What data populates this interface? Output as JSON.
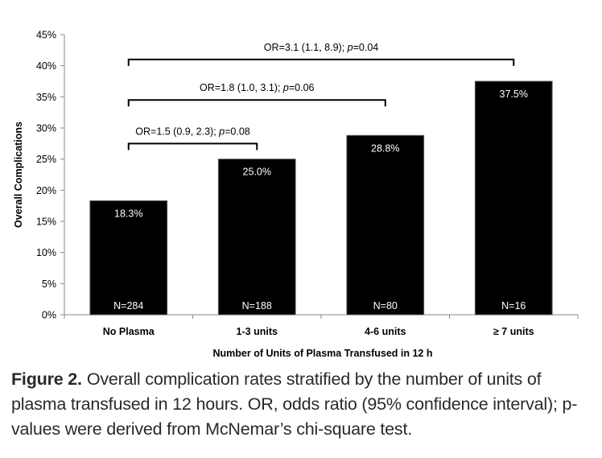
{
  "chart_data": {
    "type": "bar",
    "categories": [
      "No Plasma",
      "1-3 units",
      "4-6 units",
      "≥ 7 units"
    ],
    "values": [
      18.3,
      25.0,
      28.8,
      37.5
    ],
    "value_labels": [
      "18.3%",
      "25.0%",
      "28.8%",
      "37.5%"
    ],
    "n_labels": [
      "N=284",
      "N=188",
      "N=80",
      "N=16"
    ],
    "xlabel": "Number of Units of Plasma Transfused in 12 h",
    "ylabel": "Overall Complications",
    "ylim": [
      0,
      45
    ],
    "yticks": [
      "0%",
      "5%",
      "10%",
      "15%",
      "20%",
      "25%",
      "30%",
      "35%",
      "40%",
      "45%"
    ],
    "bar_color": "#000000",
    "grid": false,
    "legend": "none",
    "brackets": [
      {
        "from": 0,
        "to": 1,
        "label_pre": "OR=1.5 (0.9, 2.3); ",
        "label_p": "p",
        "label_post": "=0.08"
      },
      {
        "from": 0,
        "to": 2,
        "label_pre": "OR=1.8 (1.0, 3.1); ",
        "label_p": "p",
        "label_post": "=0.06"
      },
      {
        "from": 0,
        "to": 3,
        "label_pre": "OR=3.1 (1.1, 8.9); ",
        "label_p": "p",
        "label_post": "=0.04"
      }
    ]
  },
  "caption": {
    "label": "Figure 2.",
    "text": "Overall complication rates stratified by the number of units of plasma transfused in 12 hours. OR, odds ratio (95% confidence interval); p-values were derived from McNemar’s chi-square test."
  }
}
